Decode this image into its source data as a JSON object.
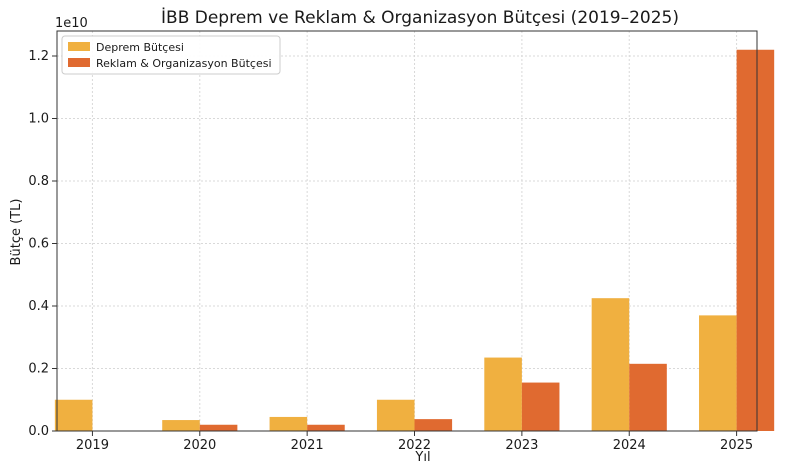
{
  "chart_data": {
    "type": "bar",
    "title": "İBB Deprem ve Reklam & Organizasyon Bütçesi (2019–2025)",
    "xlabel": "Yıl",
    "ylabel": "Bütçe (TL)",
    "y_offset_label": "1e10",
    "categories": [
      "2019",
      "2020",
      "2021",
      "2022",
      "2023",
      "2024",
      "2025"
    ],
    "series": [
      {
        "name": "Deprem Bütçesi",
        "color": "#f0b040",
        "values": [
          0.1,
          0.035,
          0.045,
          0.1,
          0.235,
          0.425,
          0.37
        ]
      },
      {
        "name": "Reklam & Organizasyon Bütçesi",
        "color": "#e06a30",
        "values": [
          0.0,
          0.02,
          0.02,
          0.038,
          0.155,
          0.215,
          1.22
        ]
      }
    ],
    "ylim": [
      0,
      1.28
    ],
    "yticks": [
      0.0,
      0.2,
      0.4,
      0.6,
      0.8,
      1.0,
      1.2
    ],
    "ytick_labels": [
      "0.0",
      "0.2",
      "0.4",
      "0.6",
      "0.8",
      "1.0",
      "1.2"
    ],
    "grid": true,
    "legend_position": "top-left"
  }
}
